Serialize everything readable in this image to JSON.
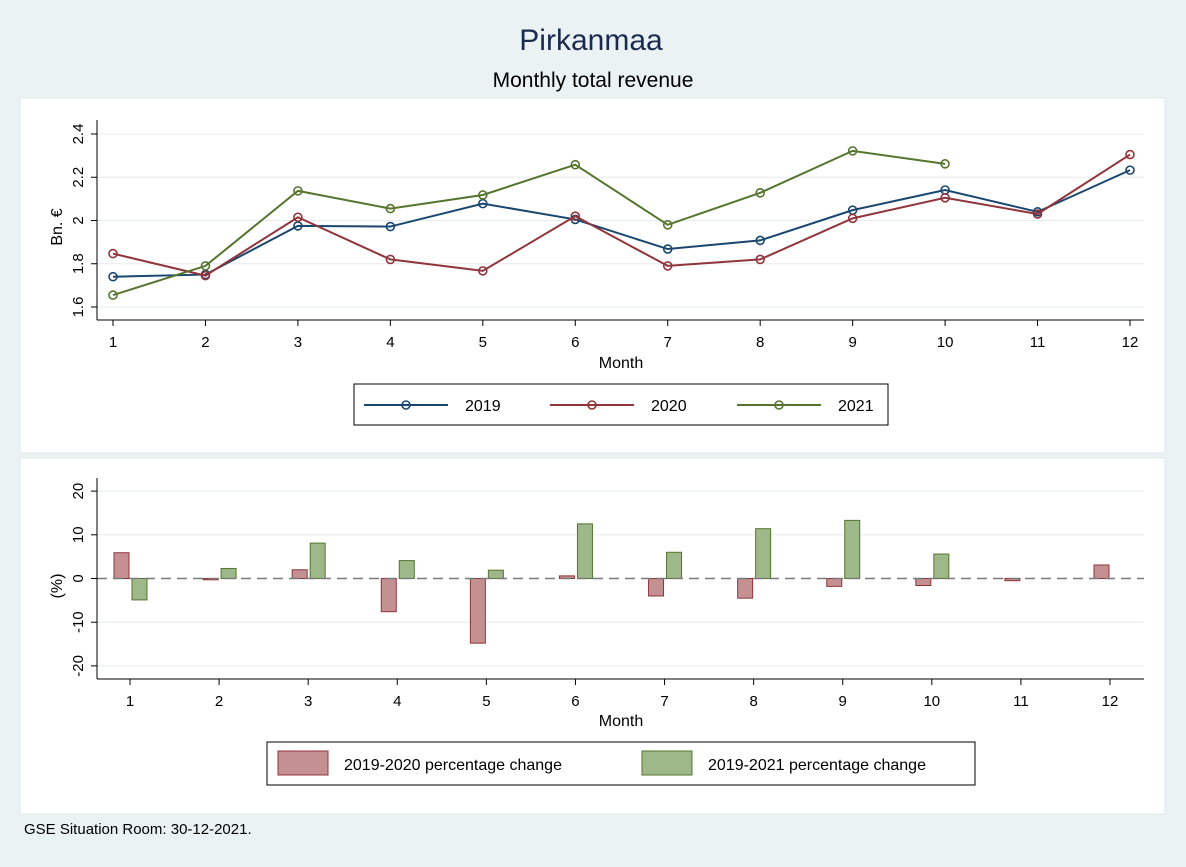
{
  "title": "Pirkanmaa",
  "subtitle": "Monthly total revenue",
  "footnote": "GSE Situation Room: 30-12-2021.",
  "colors": {
    "background": "#eaf2f3",
    "panel": "#ffffff",
    "title": "#1a2a50",
    "s2019": "#1a476f",
    "s2020": "#90353b",
    "s2021": "#55752f",
    "bar2020_fill": "#c49092",
    "bar2020_stroke": "#90353b",
    "bar2021_fill": "#9fb889",
    "bar2021_stroke": "#55752f"
  },
  "chart_data": [
    {
      "type": "line",
      "xlabel": "Month",
      "ylabel": "Bn. €",
      "x": [
        1,
        2,
        3,
        4,
        5,
        6,
        7,
        8,
        9,
        10,
        11,
        12
      ],
      "xticks": [
        "1",
        "2",
        "3",
        "4",
        "5",
        "6",
        "7",
        "8",
        "9",
        "10",
        "11",
        "12"
      ],
      "yticks": [
        "1.6",
        "1.8",
        "2",
        "2.2",
        "2.4"
      ],
      "ylim": [
        1.6,
        2.4
      ],
      "grid": true,
      "legend_position": "bottom",
      "series": [
        {
          "name": "2019",
          "values": [
            1.74,
            1.75,
            1.975,
            1.972,
            2.078,
            2.005,
            1.868,
            1.908,
            2.048,
            2.141,
            2.04,
            2.233
          ]
        },
        {
          "name": "2020",
          "values": [
            1.847,
            1.745,
            2.015,
            1.82,
            1.767,
            2.02,
            1.79,
            1.82,
            2.01,
            2.105,
            2.03,
            2.305
          ]
        },
        {
          "name": "2021",
          "values": [
            1.655,
            1.79,
            2.137,
            2.055,
            2.118,
            2.258,
            1.98,
            2.128,
            2.322,
            2.262,
            null,
            null
          ]
        }
      ]
    },
    {
      "type": "bar",
      "xlabel": "Month",
      "ylabel": "(%)",
      "categories": [
        "1",
        "2",
        "3",
        "4",
        "5",
        "6",
        "7",
        "8",
        "9",
        "10",
        "11",
        "12"
      ],
      "yticks": [
        "-20",
        "-10",
        "0",
        "10",
        "20"
      ],
      "ylim": [
        -23,
        23
      ],
      "grid": true,
      "reference_line": 0,
      "legend_position": "bottom",
      "series": [
        {
          "name": "2019-2020 percentage change",
          "values": [
            5.9,
            -0.3,
            2.0,
            -7.6,
            -14.8,
            0.6,
            -4.0,
            -4.5,
            -1.8,
            -1.6,
            -0.5,
            3.1
          ]
        },
        {
          "name": "2019-2021 percentage change",
          "values": [
            -4.9,
            2.3,
            8.1,
            4.1,
            1.9,
            12.5,
            6.0,
            11.4,
            13.3,
            5.6,
            null,
            null
          ]
        }
      ]
    }
  ]
}
